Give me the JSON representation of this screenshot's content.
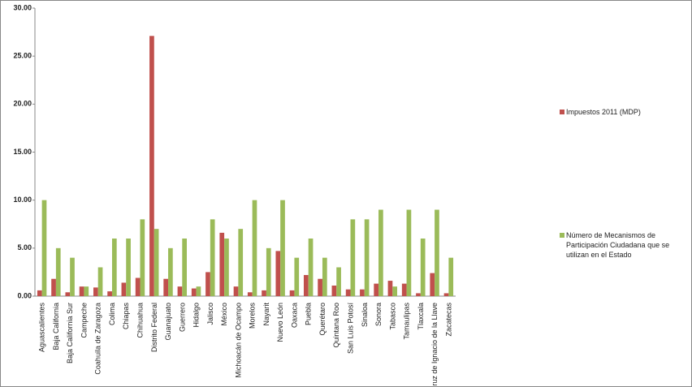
{
  "chart_data": {
    "type": "bar",
    "categories": [
      "Aguascalientes",
      "Baja California",
      "Baja California Sur",
      "Campeche",
      "Coahuila de Zaragoza",
      "Colima",
      "Chiapas",
      "Chihuahua",
      "Distrito Federal",
      "Guanajuato",
      "Guerrero",
      "Hidalgo",
      "Jalisco",
      "México",
      "Michoacán de Ocampo",
      "Morelos",
      "Nayarit",
      "Nuevo León",
      "Oaxaca",
      "Puebla",
      "Querétaro",
      "Quintana Roo",
      "San Luis Potosí",
      "Sinaloa",
      "Sonora",
      "Tabasco",
      "Tamaulipas",
      "Tlaxcala",
      "Veracruz de Ignacio de la Llave",
      "Zacatecas"
    ],
    "series": [
      {
        "name": "Impuestos 2011 (MDP)",
        "color": "#c0504d",
        "values": [
          0.6,
          1.8,
          0.4,
          1.0,
          0.9,
          0.5,
          1.4,
          1.9,
          27.1,
          1.8,
          1.0,
          0.8,
          2.5,
          6.6,
          1.0,
          0.4,
          0.6,
          4.7,
          0.6,
          2.2,
          1.8,
          1.1,
          0.7,
          0.7,
          1.3,
          1.6,
          1.3,
          0.3,
          2.4,
          0.3
        ]
      },
      {
        "name": "Número de Mecanismos de Participación Ciudadana que se utilizan en el Estado",
        "color": "#9bbb59",
        "values": [
          10,
          5,
          4,
          1,
          3,
          6,
          6,
          8,
          7,
          5,
          6,
          1,
          8,
          6,
          7,
          10,
          5,
          10,
          4,
          6,
          4,
          3,
          8,
          8,
          9,
          1,
          9,
          6,
          9,
          4
        ]
      }
    ],
    "ylim": [
      0,
      30
    ],
    "yticks": [
      {
        "value": 0,
        "label": "0.00"
      },
      {
        "value": 5,
        "label": "5.00"
      },
      {
        "value": 10,
        "label": "10.00"
      },
      {
        "value": 15,
        "label": "15.00"
      },
      {
        "value": 20,
        "label": "20.00"
      },
      {
        "value": 25,
        "label": "25.00"
      },
      {
        "value": 30,
        "label": "30.00"
      }
    ],
    "legend": "right"
  }
}
